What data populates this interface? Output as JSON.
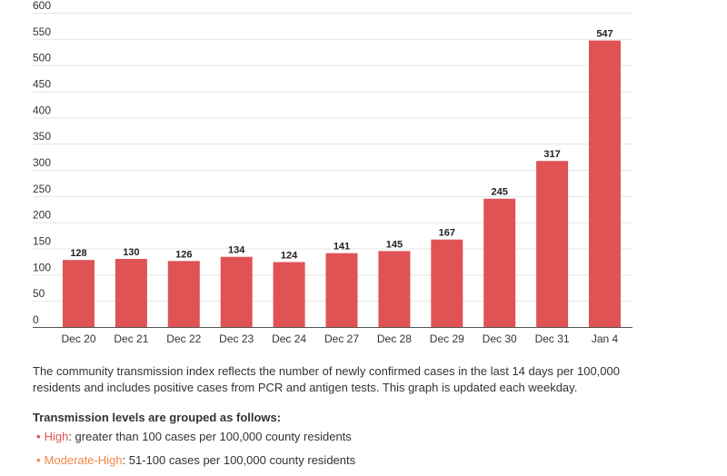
{
  "chart_data": {
    "type": "bar",
    "categories": [
      "Dec 20",
      "Dec 21",
      "Dec 22",
      "Dec 23",
      "Dec 24",
      "Dec 27",
      "Dec 28",
      "Dec 29",
      "Dec 30",
      "Dec 31",
      "Jan 4"
    ],
    "values": [
      128,
      130,
      126,
      134,
      124,
      141,
      145,
      167,
      245,
      317,
      547
    ],
    "ylim": [
      0,
      600
    ],
    "yticks": [
      0,
      50,
      100,
      150,
      200,
      250,
      300,
      350,
      400,
      450,
      500,
      550,
      600
    ],
    "grid": true,
    "bar_color": "#e05355"
  },
  "description": "The community transmission index reflects the number of newly confirmed cases in the last 14 days per 100,000 residents and includes positive cases from PCR and antigen tests. This graph is updated each weekday.",
  "groups_heading": "Transmission levels are grouped as follows:",
  "levels": [
    {
      "name": "High",
      "text": ": greater than 100 cases per 100,000 county residents",
      "color": "#e05355"
    },
    {
      "name": "Moderate-High",
      "text": ": 51-100 cases per 100,000 county residents",
      "color": "#f08a4b"
    }
  ]
}
